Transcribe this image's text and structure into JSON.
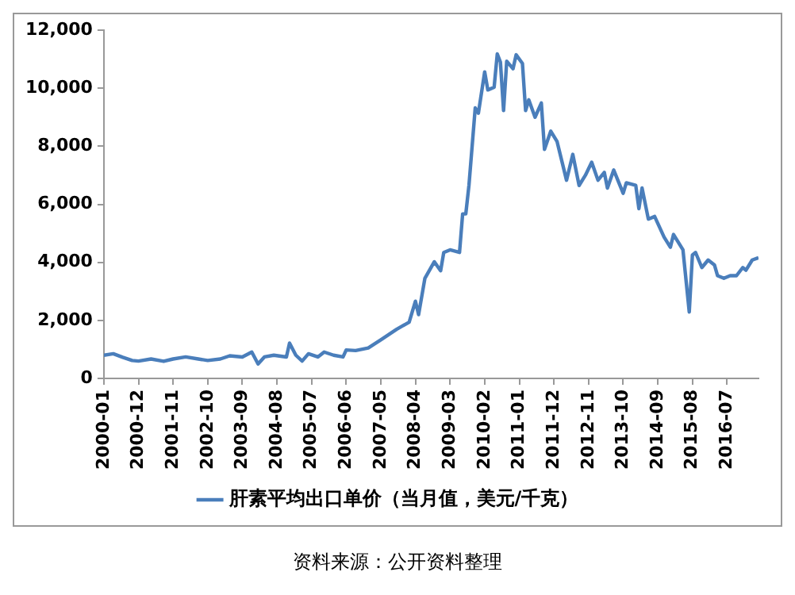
{
  "chart_data": {
    "type": "line",
    "x": [
      "2000-01",
      "2000-04",
      "2000-07",
      "2000-10",
      "2000-12",
      "2001-04",
      "2001-08",
      "2001-11",
      "2002-03",
      "2002-07",
      "2002-10",
      "2003-02",
      "2003-05",
      "2003-09",
      "2003-12",
      "2004-02",
      "2004-04",
      "2004-07",
      "2004-11",
      "2004-12",
      "2005-02",
      "2005-04",
      "2005-06",
      "2005-09",
      "2005-11",
      "2006-02",
      "2006-05",
      "2006-06",
      "2006-09",
      "2007-01",
      "2007-05",
      "2007-10",
      "2008-02",
      "2008-04",
      "2008-05",
      "2008-07",
      "2008-10",
      "2008-12",
      "2009-01",
      "2009-03",
      "2009-06",
      "2009-07",
      "2009-08",
      "2009-09",
      "2009-11",
      "2009-12",
      "2010-02",
      "2010-03",
      "2010-05",
      "2010-06",
      "2010-07",
      "2010-08",
      "2010-09",
      "2010-11",
      "2010-12",
      "2011-02",
      "2011-03",
      "2011-04",
      "2011-06",
      "2011-08",
      "2011-09",
      "2011-11",
      "2012-01",
      "2012-04",
      "2012-06",
      "2012-08",
      "2012-10",
      "2012-12",
      "2013-02",
      "2013-04",
      "2013-05",
      "2013-07",
      "2013-10",
      "2013-11",
      "2014-02",
      "2014-03",
      "2014-04",
      "2014-06",
      "2014-08",
      "2014-11",
      "2015-01",
      "2015-02",
      "2015-05",
      "2015-07",
      "2015-08",
      "2015-09",
      "2015-11",
      "2016-01",
      "2016-03",
      "2016-04",
      "2016-06",
      "2016-08",
      "2016-10",
      "2016-12",
      "2017-01",
      "2017-03",
      "2017-05"
    ],
    "series": [
      {
        "name": "肝素平均出口单价（当月值，美元/千克）",
        "color": "#4a7ebb",
        "values": [
          800,
          850,
          730,
          620,
          600,
          670,
          590,
          670,
          740,
          670,
          620,
          670,
          780,
          740,
          910,
          500,
          740,
          800,
          740,
          1220,
          800,
          600,
          850,
          740,
          910,
          800,
          740,
          980,
          960,
          1050,
          1330,
          1690,
          1940,
          2660,
          2200,
          3450,
          4020,
          3710,
          4340,
          4430,
          4340,
          5670,
          5670,
          6650,
          9320,
          9140,
          10560,
          9940,
          10030,
          11180,
          10900,
          9230,
          10930,
          10670,
          11150,
          10850,
          9230,
          9600,
          9000,
          9490,
          7890,
          8520,
          8160,
          6830,
          7720,
          6650,
          7000,
          7450,
          6830,
          7100,
          6560,
          7180,
          6380,
          6740,
          6650,
          5850,
          6560,
          5490,
          5580,
          4870,
          4520,
          4960,
          4430,
          2290,
          4250,
          4340,
          3820,
          4080,
          3910,
          3540,
          3450,
          3540,
          3540,
          3820,
          3730,
          4080,
          4160
        ]
      }
    ],
    "xlim": [
      "2000-01",
      "2017-05"
    ],
    "xticks": [
      "2000-01",
      "2000-12",
      "2001-11",
      "2002-10",
      "2003-09",
      "2004-08",
      "2005-07",
      "2006-06",
      "2007-05",
      "2008-04",
      "2009-03",
      "2010-02",
      "2011-01",
      "2011-12",
      "2012-11",
      "2013-10",
      "2014-09",
      "2015-08",
      "2016-07"
    ],
    "ylim": [
      0,
      12000
    ],
    "yticks": [
      0,
      {
        "value": 2000,
        "label": "2,000"
      },
      {
        "value": 4000,
        "label": "4,000"
      },
      {
        "value": 6000,
        "label": "6,000"
      },
      {
        "value": 8000,
        "label": "8,000"
      },
      {
        "value": 10000,
        "label": "10,000"
      },
      {
        "value": 12000,
        "label": "12,000"
      }
    ],
    "grid": false,
    "legend": "bottom",
    "marker": "none",
    "line_style": "solid",
    "annotations": [
      "资料来源：公开资料整理"
    ]
  }
}
